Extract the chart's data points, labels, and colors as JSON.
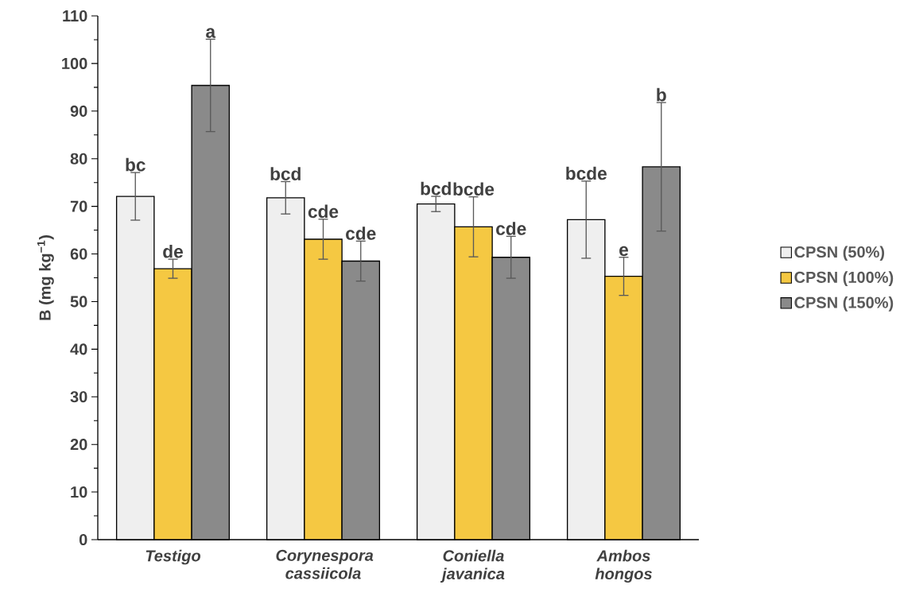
{
  "chart_data": {
    "type": "bar",
    "ylabel": "B (mg kg$^{−1}$)",
    "categories": [
      "Testigo",
      "Corynespora cassiicola",
      "Coniella javanica",
      "Ambos hongos"
    ],
    "series": [
      {
        "name": "CPSN (50%)",
        "color": "#efefef",
        "values": [
          72.1,
          71.8,
          70.5,
          67.2
        ],
        "errors": [
          5,
          3.4,
          1.6,
          8.1
        ]
      },
      {
        "name": "CPSN (100%)",
        "color": "#f5c842",
        "values": [
          56.9,
          63.1,
          65.7,
          55.3
        ],
        "errors": [
          2,
          4.2,
          6.3,
          4
        ]
      },
      {
        "name": "CPSN (150%)",
        "color": "#8a8a8a",
        "values": [
          95.4,
          58.5,
          59.3,
          78.3
        ],
        "errors": [
          9.7,
          4.2,
          4.4,
          13.5
        ]
      }
    ],
    "ylim": [
      0,
      110
    ],
    "yticks": [
      0,
      10,
      20,
      30,
      40,
      50,
      60,
      70,
      80,
      90,
      100,
      110
    ],
    "legend": "right",
    "annotations": [
      "bc",
      "de",
      "a",
      "bcd",
      "cde",
      "cde",
      "bcd",
      "bcde",
      "cde",
      "bcde",
      "e",
      "b"
    ]
  }
}
